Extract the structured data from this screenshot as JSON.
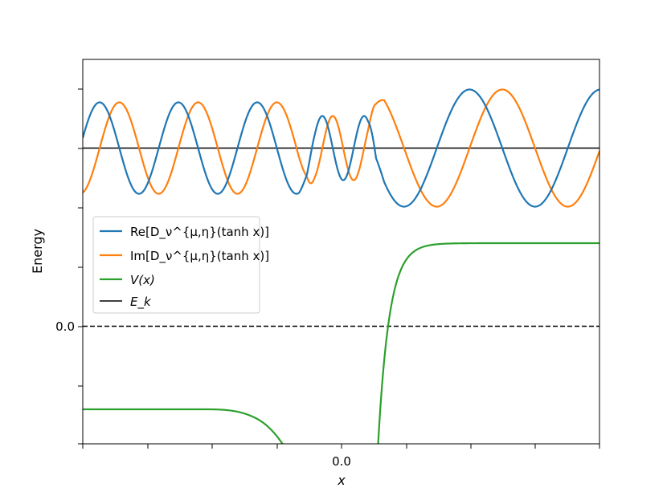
{
  "chart_data": {
    "type": "line",
    "xlabel": "x",
    "ylabel": "Energy",
    "x_ticks": [
      {
        "value": 0.0,
        "label": "0.0"
      }
    ],
    "y_ticks": [
      {
        "value": 0.0,
        "label": "0.0"
      }
    ],
    "grid": false,
    "legend_placement": "center-left",
    "legend": [
      {
        "name": "Re[D_ν^{μ,η}(tanh x)]",
        "color": "#1f77b4"
      },
      {
        "name": "Im[D_ν^{μ,η}(tanh x)]",
        "color": "#ff7f0e"
      },
      {
        "name": "V(x)",
        "color": "#2ca02c"
      },
      {
        "name": "E_k",
        "color": "#000000"
      }
    ],
    "zero_line": {
      "y": 0.0,
      "style": "dashed",
      "color": "#000000"
    },
    "series": [
      {
        "name": "E_k",
        "color": "#000000",
        "constant_y": 3.0
      },
      {
        "name": "V(x)",
        "color": "#2ca02c",
        "left_level": -1.4,
        "right_level": 1.42
      }
    ]
  }
}
